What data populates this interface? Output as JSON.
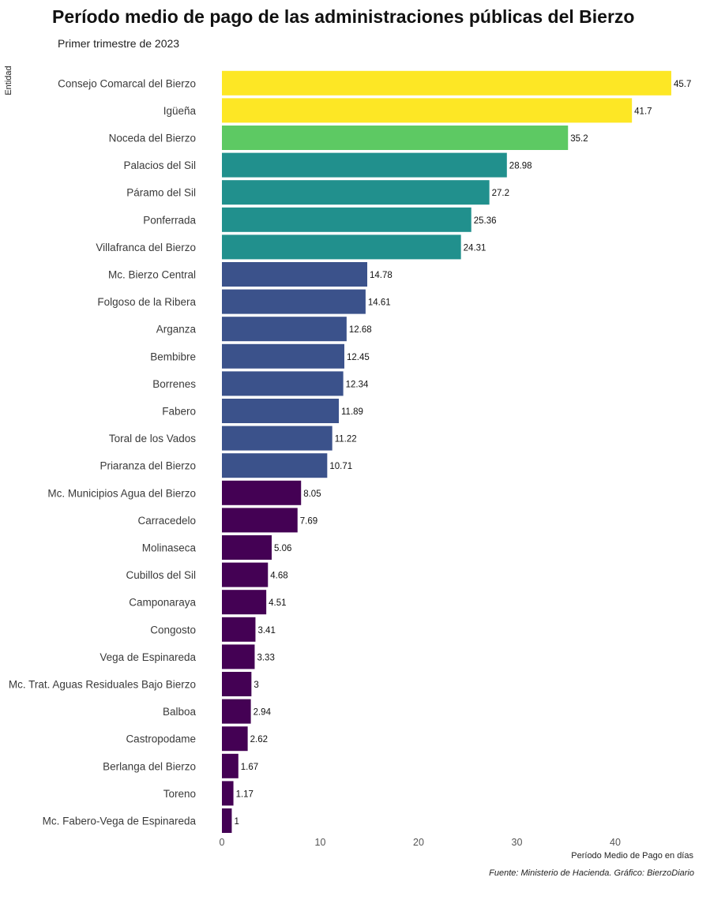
{
  "chart_data": {
    "type": "bar",
    "orientation": "horizontal",
    "title": "Período medio de pago de las administraciones públicas del Bierzo",
    "subtitle": "Primer trimestre de 2023",
    "caption": "Fuente: Ministerio de Hacienda. Gráfico: BierzoDiario",
    "xlabel": "Período Medio de Pago en días",
    "ylabel": "Entidad",
    "xlim": [
      0,
      47
    ],
    "xticks": [
      0,
      10,
      20,
      30,
      40
    ],
    "grid": false,
    "legend": "none",
    "categories": [
      "Consejo Comarcal del Bierzo",
      "Igüeña",
      "Noceda del Bierzo",
      "Palacios del Sil",
      "Páramo del Sil",
      "Ponferrada",
      "Villafranca del Bierzo",
      "Mc. Bierzo Central",
      "Folgoso de la Ribera",
      "Arganza",
      "Bembibre",
      "Borrenes",
      "Fabero",
      "Toral de los Vados",
      "Priaranza del Bierzo",
      "Mc. Municipios Agua del Bierzo",
      "Carracedelo",
      "Molinaseca",
      "Cubillos del Sil",
      "Camponaraya",
      "Congosto",
      "Vega de Espinareda",
      "Mc. Trat. Aguas Residuales Bajo Bierzo",
      "Balboa",
      "Castropodame",
      "Berlanga del Bierzo",
      "Toreno",
      "Mc. Fabero-Vega de Espinareda"
    ],
    "values": [
      45.7,
      41.7,
      35.2,
      28.98,
      27.2,
      25.36,
      24.31,
      14.78,
      14.61,
      12.68,
      12.45,
      12.34,
      11.89,
      11.22,
      10.71,
      8.05,
      7.69,
      5.06,
      4.68,
      4.51,
      3.41,
      3.33,
      3,
      2.94,
      2.62,
      1.67,
      1.17,
      1
    ],
    "value_labels": [
      "45.7",
      "41.7",
      "35.2",
      "28.98",
      "27.2",
      "25.36",
      "24.31",
      "14.78",
      "14.61",
      "12.68",
      "12.45",
      "12.34",
      "11.89",
      "11.22",
      "10.71",
      "8.05",
      "7.69",
      "5.06",
      "4.68",
      "4.51",
      "3.41",
      "3.33",
      "3",
      "2.94",
      "2.62",
      "1.67",
      "1.17",
      "1"
    ],
    "bar_colors": [
      "#FDE725",
      "#FDE725",
      "#5DC963",
      "#21908D",
      "#21908D",
      "#21908D",
      "#21908D",
      "#3B528B",
      "#3B528B",
      "#3B528B",
      "#3B528B",
      "#3B528B",
      "#3B528B",
      "#3B528B",
      "#3B528B",
      "#440154",
      "#440154",
      "#440154",
      "#440154",
      "#440154",
      "#440154",
      "#440154",
      "#440154",
      "#440154",
      "#440154",
      "#440154",
      "#440154",
      "#440154"
    ]
  }
}
